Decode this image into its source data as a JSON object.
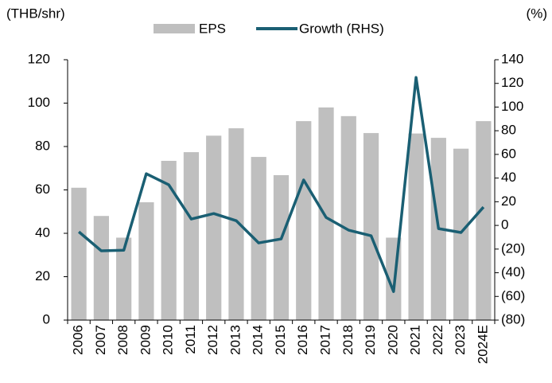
{
  "chart_data": {
    "type": "bar_line",
    "y_label": "(THB/shr)",
    "y2_label": "(%)",
    "categories": [
      "2006",
      "2007",
      "2008",
      "2009",
      "2010",
      "2011",
      "2012",
      "2013",
      "2014",
      "2015",
      "2016",
      "2017",
      "2018",
      "2019",
      "2020",
      "2021",
      "2022",
      "2023",
      "2024E"
    ],
    "series": [
      {
        "name": "EPS",
        "type": "bar",
        "color": "#bfbfbf",
        "values": [
          61,
          48,
          38,
          54.3,
          73.4,
          77.4,
          85,
          88.4,
          75.2,
          66.8,
          91.7,
          98,
          94,
          86.2,
          38,
          86,
          84,
          79,
          91.7
        ]
      },
      {
        "name": "Growth (RHS)",
        "type": "line",
        "axis": "y2",
        "color": "#1a5f73",
        "values": [
          -5.4,
          -21.5,
          -21,
          43.7,
          34.3,
          5.4,
          10,
          4,
          -14.8,
          -11.4,
          38.4,
          6.7,
          -4,
          -8.7,
          -55.9,
          125,
          -2.7,
          -6,
          15.5
        ]
      }
    ],
    "ylim": [
      0,
      120
    ],
    "yticks": [
      0,
      20,
      40,
      60,
      80,
      100,
      120
    ],
    "y2lim": [
      -80,
      140
    ],
    "y2ticks": [
      {
        "value": -80,
        "label": "(80)"
      },
      {
        "value": -60,
        "label": "(60)"
      },
      {
        "value": -40,
        "label": "(40)"
      },
      {
        "value": -20,
        "label": "(20)"
      },
      0,
      20,
      40,
      60,
      80,
      100,
      120,
      140
    ],
    "legend": "top"
  }
}
